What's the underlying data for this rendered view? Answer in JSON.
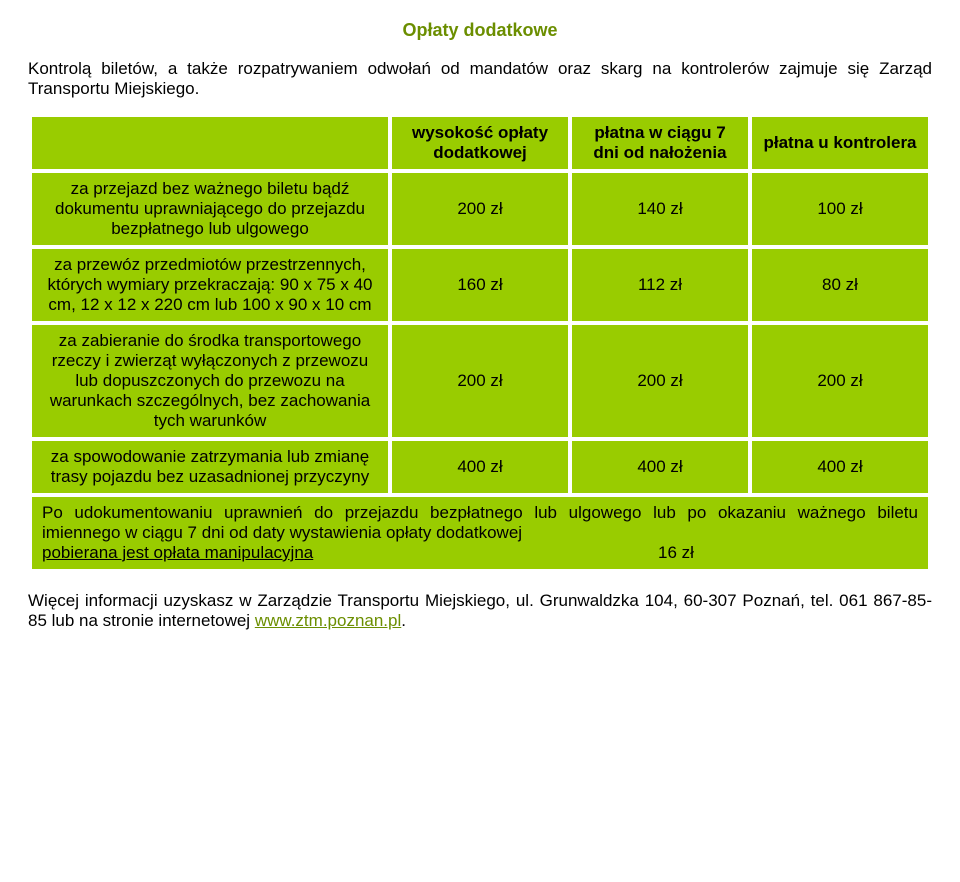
{
  "colors": {
    "accent": "#6b8e00",
    "table_bg": "#99cc00",
    "text": "#000000",
    "font_size_body": 17,
    "font_size_title": 18
  },
  "title": "Opłaty dodatkowe",
  "intro": "Kontrolą biletów, a także rozpatrywaniem odwołań od mandatów oraz skarg na kontrolerów zajmuje się Zarząd Transportu Miejskiego.",
  "table": {
    "col_widths_pct": [
      40,
      20,
      20,
      20
    ],
    "head": {
      "blank": "",
      "c1": "wysokość opłaty dodatkowej",
      "c2": "płatna w ciągu 7 dni od nałożenia",
      "c3": "płatna u kontrolera"
    },
    "rows": [
      {
        "label": "za przejazd bez ważnego biletu bądź dokumentu uprawniającego do przejazdu bezpłatnego lub ulgowego",
        "v1": "200 zł",
        "v2": "140 zł",
        "v3": "100 zł"
      },
      {
        "label": "za przewóz przedmiotów przestrzennych, których wymiary przekraczają: 90 x 75 x 40 cm, 12 x 12 x 220 cm lub 100 x 90 x 10 cm",
        "v1": "160 zł",
        "v2": "112 zł",
        "v3": "80 zł"
      },
      {
        "label": "za zabieranie do środka transportowego rzeczy i zwierząt wyłączonych z przewozu lub dopuszczonych do przewozu na warunkach szczególnych, bez zachowania tych warunków",
        "v1": "200 zł",
        "v2": "200 zł",
        "v3": "200 zł"
      },
      {
        "label": "za spowodowanie zatrzymania lub zmianę trasy pojazdu bez uzasadnionej przyczyny",
        "v1": "400 zł",
        "v2": "400 zł",
        "v3": "400 zł"
      }
    ],
    "footnote": {
      "full": "Po udokumentowaniu uprawnień do przejazdu bezpłatnego lub ulgowego lub po okazaniu ważnego biletu imiennego w ciągu 7 dni od daty wystawienia opłaty dodatkowej ",
      "manip_left": "pobierana jest opłata manipulacyjna",
      "manip_right": "16 zł"
    }
  },
  "outro": {
    "pre": "Więcej informacji uzyskasz w Zarządzie Transportu Miejskiego, ul. Grunwaldzka 104, 60-307 Poznań, tel. 061 867-85-85 lub na stronie internetowej ",
    "link": "www.ztm.poznan.pl",
    "post": "."
  }
}
